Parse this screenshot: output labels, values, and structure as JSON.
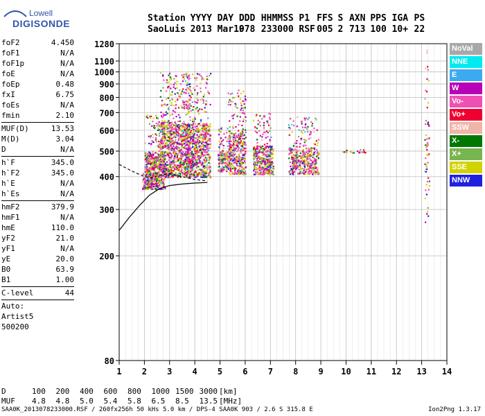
{
  "logo": {
    "line1": "Lowell",
    "line2": "DIGISONDE"
  },
  "header": {
    "labels": [
      "Station",
      "YYYY",
      "DAY",
      "DDD",
      "HHMMSS",
      "P1",
      "FFS",
      "S",
      "AXN",
      "PPS",
      "IGA",
      "PS"
    ],
    "values": [
      "SaoLuis",
      "2013",
      "Mar19",
      "078",
      "233000",
      "RSF",
      "005",
      "2",
      "713",
      "100",
      "10+",
      "22"
    ]
  },
  "params": [
    [
      [
        "foF2",
        "4.450"
      ],
      [
        "foF1",
        "N/A"
      ],
      [
        "foF1p",
        "N/A"
      ],
      [
        "foE",
        "N/A"
      ],
      [
        "foEp",
        "0.48"
      ],
      [
        "fxI",
        "6.75"
      ],
      [
        "foEs",
        "N/A"
      ],
      [
        "fmin",
        "2.10"
      ]
    ],
    [
      [
        "MUF(D)",
        "13.53"
      ],
      [
        "M(D)",
        "3.04"
      ],
      [
        "D",
        "N/A"
      ]
    ],
    [
      [
        "h`F",
        "345.0"
      ],
      [
        "h`F2",
        "345.0"
      ],
      [
        "h`E",
        "N/A"
      ],
      [
        "h`Es",
        "N/A"
      ]
    ],
    [
      [
        "hmF2",
        "379.9"
      ],
      [
        "hmF1",
        "N/A"
      ],
      [
        "hmE",
        "110.0"
      ],
      [
        "yF2",
        "21.0"
      ],
      [
        "yF1",
        "N/A"
      ],
      [
        "yE",
        "20.0"
      ],
      [
        "B0",
        "63.9"
      ],
      [
        "B1",
        "1.00"
      ]
    ],
    [
      [
        "C-level",
        "44"
      ]
    ]
  ],
  "scaler": [
    "Auto:",
    "Artist5",
    "500200"
  ],
  "muf_table": {
    "d_label": "D",
    "d_values": [
      "100",
      "200",
      "400",
      "600",
      "800",
      "1000",
      "1500",
      "3000"
    ],
    "d_unit": "[km]",
    "muf_label": "MUF",
    "muf_values": [
      "4.8",
      "4.8",
      "5.0",
      "5.4",
      "5.8",
      "6.5",
      "8.5",
      "13.5"
    ],
    "muf_unit": "[MHz]"
  },
  "footer": {
    "left": "SAA0K_2013078233000.RSF / 260fx256h 50 kHs 5.0 km / DPS-4 SAA0K 903 / 2.6 S 315.8 E",
    "right": "Ion2Png 1.3.17"
  },
  "legend": [
    {
      "name": "NoVal",
      "color": "#a8a8a8"
    },
    {
      "name": "NNE",
      "color": "#00eaf0"
    },
    {
      "name": "E",
      "color": "#3caaf0"
    },
    {
      "name": "W",
      "color": "#b800b8"
    },
    {
      "name": "Vo-",
      "color": "#f050b4"
    },
    {
      "name": "Vo+",
      "color": "#f00030"
    },
    {
      "name": "SSW",
      "color": "#f0b4a8"
    },
    {
      "name": "X-",
      "color": "#007800"
    },
    {
      "name": "X+",
      "color": "#78b450"
    },
    {
      "name": "SSE",
      "color": "#d2d200"
    },
    {
      "name": "NNW",
      "color": "#2020e0"
    }
  ],
  "chart_data": {
    "type": "scatter",
    "title": "",
    "xlabel": "",
    "ylabel": "",
    "xlim": [
      1,
      14
    ],
    "ylim": [
      80,
      1280
    ],
    "x_ticks": [
      1,
      2,
      3,
      4,
      5,
      6,
      7,
      8,
      9,
      10,
      11,
      12,
      13,
      14
    ],
    "y_ticks": [
      80,
      200,
      300,
      400,
      500,
      600,
      700,
      800,
      900,
      1000,
      1100,
      1280
    ],
    "y_scale": "log",
    "grid": true,
    "legend_position": "right",
    "echo_clusters": [
      {
        "f_range": [
          1.9,
          2.3
        ],
        "h_range": [
          360,
          440
        ]
      },
      {
        "f_range": [
          2.0,
          2.8
        ],
        "h_range": [
          360,
          700
        ]
      },
      {
        "f_range": [
          2.6,
          3.8
        ],
        "h_range": [
          400,
          1000
        ]
      },
      {
        "f_range": [
          3.6,
          4.6
        ],
        "h_range": [
          400,
          1000
        ]
      },
      {
        "f_range": [
          4.9,
          5.3
        ],
        "h_range": [
          420,
          620
        ]
      },
      {
        "f_range": [
          5.3,
          6.0
        ],
        "h_range": [
          410,
          860
        ]
      },
      {
        "f_range": [
          6.3,
          7.1
        ],
        "h_range": [
          410,
          700
        ]
      },
      {
        "f_range": [
          7.7,
          8.9
        ],
        "h_range": [
          410,
          680
        ]
      },
      {
        "f_range": [
          9.8,
          10.8
        ],
        "h_range": [
          495,
          510
        ]
      },
      {
        "f_range": [
          13.1,
          13.3
        ],
        "h_range": [
          260,
          1280
        ]
      }
    ],
    "profile_curve": [
      [
        1.0,
        250
      ],
      [
        1.4,
        280
      ],
      [
        1.8,
        310
      ],
      [
        2.2,
        340
      ],
      [
        2.6,
        360
      ],
      [
        3.0,
        370
      ],
      [
        3.5,
        375
      ],
      [
        4.0,
        378
      ],
      [
        4.5,
        380
      ]
    ],
    "virtual_trace": [
      [
        1.0,
        445
      ],
      [
        1.5,
        420
      ],
      [
        2.0,
        400
      ],
      [
        2.2,
        395
      ],
      [
        2.6,
        405
      ],
      [
        3.0,
        410
      ],
      [
        3.5,
        400
      ],
      [
        4.0,
        390
      ],
      [
        4.5,
        385
      ]
    ]
  }
}
